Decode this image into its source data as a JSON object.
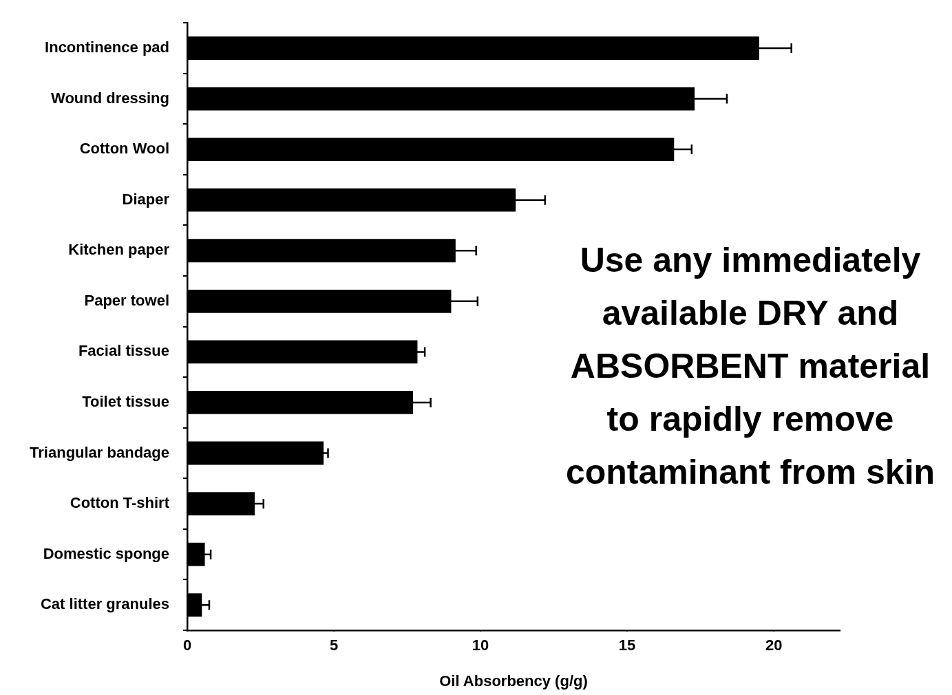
{
  "chart_data": {
    "type": "bar",
    "orientation": "horizontal",
    "xlabel": "Oil Absorbency (g/g)",
    "categories": [
      "Incontinence pad",
      "Wound dressing",
      "Cotton Wool",
      "Diaper",
      "Kitchen paper",
      "Paper towel",
      "Facial tissue",
      "Toilet tissue",
      "Triangular bandage",
      "Cotton T-shirt",
      "Domestic sponge",
      "Cat litter granules"
    ],
    "values": [
      19.5,
      17.3,
      16.6,
      11.2,
      9.15,
      9.0,
      7.85,
      7.7,
      4.65,
      2.3,
      0.6,
      0.5
    ],
    "errors": [
      1.1,
      1.1,
      0.6,
      1.0,
      0.7,
      0.9,
      0.25,
      0.6,
      0.15,
      0.3,
      0.2,
      0.25
    ],
    "color": "#000000",
    "xlim": [
      0,
      22.25
    ],
    "xticks": [
      0,
      5,
      10,
      15,
      20
    ],
    "annotations": [
      "Use any immediately available DRY and ABSORBENT material to rapidly remove contaminant from skin"
    ]
  }
}
